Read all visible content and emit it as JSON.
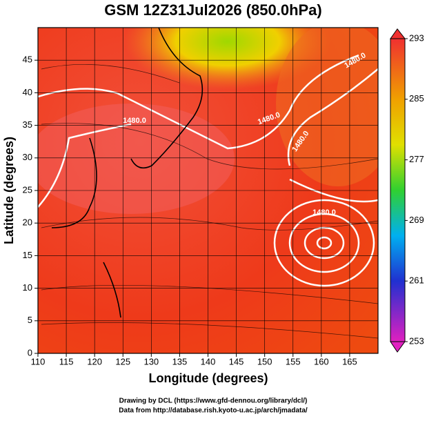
{
  "title": "GSM 12Z31Jul2026 (850.0hPa)",
  "x_axis": {
    "label": "Longitude (degrees)",
    "lim": [
      110,
      170
    ],
    "ticks": [
      110,
      115,
      120,
      125,
      130,
      135,
      140,
      145,
      150,
      155,
      160,
      165
    ]
  },
  "y_axis": {
    "label": "Latitude  (degrees)",
    "lim": [
      0,
      50
    ],
    "ticks": [
      0,
      5,
      10,
      15,
      20,
      25,
      30,
      35,
      40,
      45
    ]
  },
  "colorbar": {
    "lim": [
      253,
      293
    ],
    "ticks": [
      253,
      261,
      269,
      277,
      285,
      293
    ]
  },
  "contour_labels": [
    "1480.0",
    "1480.0",
    "1480.0",
    "1480.0",
    "1480.0"
  ],
  "credits": [
    "Drawing by DCL (https://www.gfd-dennou.org/library/dcl/)",
    "Data from http://database.rish.kyoto-u.ac.jp/arch/jmadata/"
  ]
}
